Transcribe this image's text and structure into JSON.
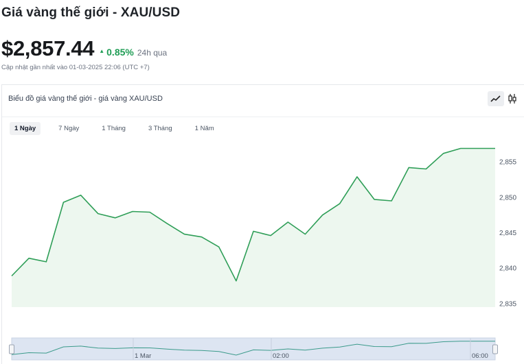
{
  "page": {
    "title": "Giá vàng thế giới - XAU/USD",
    "price": "$2,857.44",
    "change_pct": "0.85%",
    "change_period": "24h qua",
    "updated": "Cập nhật gần nhất vào 01-03-2025 22:06 (UTC +7)"
  },
  "card": {
    "title": "Biểu đồ giá vàng thế giới - giá vàng XAU/USD",
    "tabs": [
      {
        "label": "1 Ngày",
        "active": true
      },
      {
        "label": "7 Ngày",
        "active": false
      },
      {
        "label": "1 Tháng",
        "active": false
      },
      {
        "label": "3 Tháng",
        "active": false
      },
      {
        "label": "1 Năm",
        "active": false
      }
    ],
    "toggles": [
      {
        "icon": "line-chart-icon",
        "active": true
      },
      {
        "icon": "candlestick-icon",
        "active": false
      }
    ]
  },
  "colors": {
    "line": "#2e9e57",
    "fill": "#edf7ef",
    "up": "#1f9d55",
    "navigator_fill": "#dde5f2",
    "navigator_line": "#3a9a8a"
  },
  "chart_data": {
    "type": "area",
    "series": [
      {
        "values": [
          2838.9,
          2841.4,
          2840.9,
          2849.3,
          2850.3,
          2847.7,
          2847.1,
          2848.0,
          2847.9,
          2846.3,
          2844.8,
          2844.4,
          2843.0,
          2838.2,
          2845.2,
          2844.6,
          2846.5,
          2844.8,
          2847.5,
          2849.1,
          2852.9,
          2849.7,
          2849.5,
          2854.2,
          2854.0,
          2856.2,
          2856.9,
          2856.9,
          2856.9
        ]
      }
    ],
    "ylim": [
      2834.5,
      2858.5
    ],
    "yticks": [
      "2,835",
      "2,840",
      "2,845",
      "2,850",
      "2,855"
    ],
    "navigator_labels": [
      "1 Mar",
      "02:00",
      "06:00"
    ],
    "grid": false
  }
}
